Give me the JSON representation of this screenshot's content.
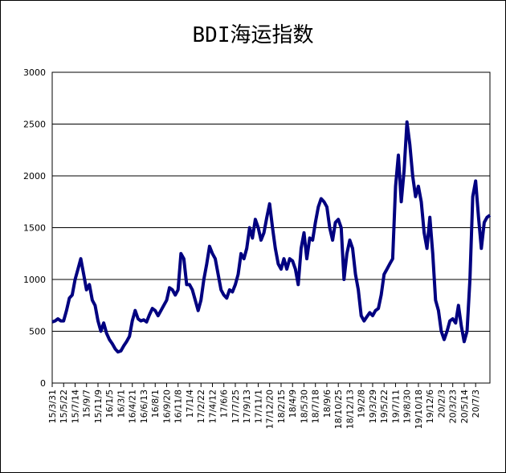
{
  "chart_data": {
    "type": "line",
    "title": "BDI海运指数",
    "categories": [
      "15/3/31",
      null,
      null,
      null,
      "15/5/22",
      null,
      null,
      null,
      "15/7/14",
      null,
      null,
      null,
      "15/9/7",
      null,
      null,
      null,
      "15/11/9",
      null,
      null,
      null,
      "16/1/5",
      null,
      null,
      null,
      "16/3/1",
      null,
      null,
      null,
      "16/4/21",
      null,
      null,
      null,
      "16/6/13",
      null,
      null,
      null,
      "16/8/1",
      null,
      null,
      null,
      "16/9/20",
      null,
      null,
      null,
      "16/11/8",
      null,
      null,
      null,
      "17/1/4",
      null,
      null,
      null,
      "17/2/22",
      null,
      null,
      null,
      "17/4/12",
      null,
      null,
      null,
      "17/6/6",
      null,
      null,
      null,
      "17/7/25",
      null,
      null,
      null,
      "17/9/13",
      null,
      null,
      null,
      "17/11/1",
      null,
      null,
      null,
      "17/12/20",
      null,
      null,
      null,
      "18/2/15",
      null,
      null,
      null,
      "18/4/9",
      null,
      null,
      null,
      "18/5/30",
      null,
      null,
      null,
      "18/7/18",
      null,
      null,
      null,
      "18/9/6",
      null,
      null,
      null,
      "18/10/25",
      null,
      null,
      null,
      "18/12/13",
      null,
      null,
      null,
      "19/2/8",
      null,
      null,
      null,
      "19/3/29",
      null,
      null,
      null,
      "19/5/22",
      null,
      null,
      null,
      "19/7/11",
      null,
      null,
      null,
      "19/8/30",
      null,
      null,
      null,
      "19/10/18",
      null,
      null,
      null,
      "19/12/6",
      null,
      null,
      null,
      "20/2/3",
      null,
      null,
      null,
      "20/3/23",
      null,
      null,
      null,
      "20/5/14",
      null,
      null,
      null,
      "20/7/3",
      null,
      null,
      null,
      null,
      null
    ],
    "values": [
      590,
      600,
      620,
      600,
      600,
      700,
      820,
      850,
      1000,
      1100,
      1200,
      1050,
      900,
      950,
      800,
      750,
      600,
      500,
      580,
      480,
      420,
      380,
      330,
      300,
      310,
      360,
      400,
      450,
      600,
      700,
      620,
      600,
      610,
      590,
      660,
      720,
      700,
      650,
      700,
      750,
      800,
      920,
      900,
      850,
      900,
      1250,
      1200,
      950,
      950,
      900,
      800,
      700,
      800,
      1000,
      1150,
      1320,
      1250,
      1200,
      1050,
      900,
      850,
      820,
      900,
      880,
      950,
      1050,
      1250,
      1200,
      1300,
      1500,
      1400,
      1580,
      1500,
      1380,
      1450,
      1600,
      1730,
      1500,
      1300,
      1150,
      1100,
      1200,
      1100,
      1200,
      1180,
      1100,
      950,
      1300,
      1450,
      1200,
      1400,
      1380,
      1550,
      1700,
      1780,
      1750,
      1700,
      1500,
      1380,
      1550,
      1580,
      1500,
      1000,
      1250,
      1380,
      1300,
      1050,
      900,
      650,
      600,
      640,
      680,
      650,
      700,
      720,
      850,
      1050,
      1100,
      1150,
      1200,
      1900,
      2200,
      1750,
      2050,
      2520,
      2300,
      2000,
      1800,
      1900,
      1750,
      1450,
      1300,
      1600,
      1250,
      800,
      700,
      500,
      420,
      500,
      600,
      620,
      580,
      750,
      550,
      400,
      500,
      1000,
      1800,
      1950,
      1600,
      1300,
      1550,
      1600,
      1620
    ],
    "color": "#000080",
    "ylim": [
      0,
      3000
    ],
    "yticks": [
      0,
      500,
      1000,
      1500,
      2000,
      2500,
      3000
    ],
    "grid": true
  }
}
